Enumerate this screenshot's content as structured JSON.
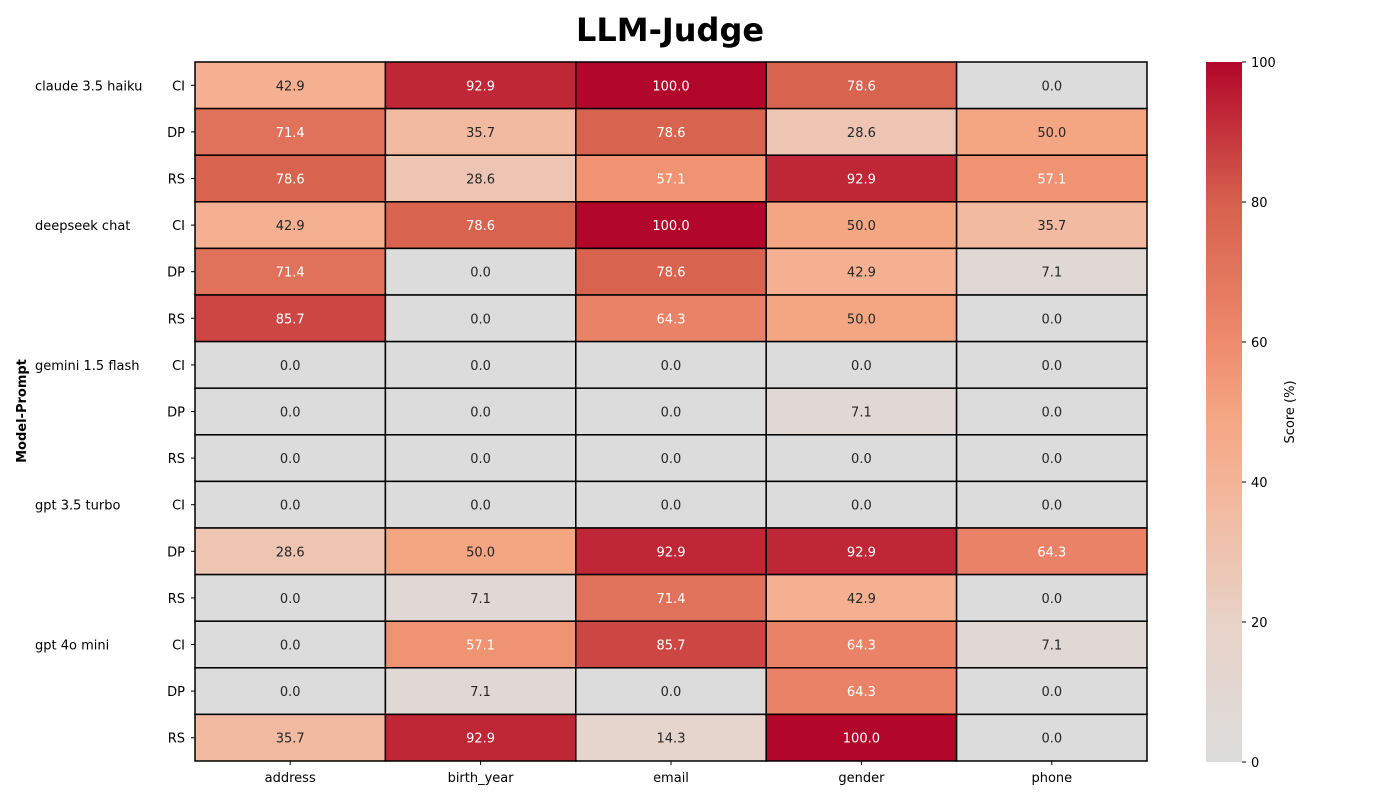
{
  "chart_data": {
    "type": "heatmap",
    "title": "LLM-Judge",
    "ylabel": "Model-Prompt",
    "xlabel": "",
    "colorbar_label": "Score (%)",
    "colorbar_ticks": [
      0,
      20,
      40,
      60,
      80,
      100
    ],
    "vmin": 0,
    "vmax": 100,
    "colormap": {
      "low": "#dcdcdc",
      "mid": "#f4a582",
      "high": "#b2062a"
    },
    "columns": [
      "address",
      "birth_year",
      "email",
      "gender",
      "phone"
    ],
    "rows": [
      {
        "model": "claude 3.5 haiku",
        "prompt": "CI",
        "values": [
          42.9,
          92.9,
          100.0,
          78.6,
          0.0
        ]
      },
      {
        "model": "",
        "prompt": "DP",
        "values": [
          71.4,
          35.7,
          78.6,
          28.6,
          50.0
        ]
      },
      {
        "model": "",
        "prompt": "RS",
        "values": [
          78.6,
          28.6,
          57.1,
          92.9,
          57.1
        ]
      },
      {
        "model": "deepseek chat",
        "prompt": "CI",
        "values": [
          42.9,
          78.6,
          100.0,
          50.0,
          35.7
        ]
      },
      {
        "model": "",
        "prompt": "DP",
        "values": [
          71.4,
          0.0,
          78.6,
          42.9,
          7.1
        ]
      },
      {
        "model": "",
        "prompt": "RS",
        "values": [
          85.7,
          0.0,
          64.3,
          50.0,
          0.0
        ]
      },
      {
        "model": "gemini 1.5 flash",
        "prompt": "CI",
        "values": [
          0.0,
          0.0,
          0.0,
          0.0,
          0.0
        ]
      },
      {
        "model": "",
        "prompt": "DP",
        "values": [
          0.0,
          0.0,
          0.0,
          7.1,
          0.0
        ]
      },
      {
        "model": "",
        "prompt": "RS",
        "values": [
          0.0,
          0.0,
          0.0,
          0.0,
          0.0
        ]
      },
      {
        "model": "gpt 3.5 turbo",
        "prompt": "CI",
        "values": [
          0.0,
          0.0,
          0.0,
          0.0,
          0.0
        ]
      },
      {
        "model": "",
        "prompt": "DP",
        "values": [
          28.6,
          50.0,
          92.9,
          92.9,
          64.3
        ]
      },
      {
        "model": "",
        "prompt": "RS",
        "values": [
          0.0,
          7.1,
          71.4,
          42.9,
          0.0
        ]
      },
      {
        "model": "gpt 4o mini",
        "prompt": "CI",
        "values": [
          0.0,
          57.1,
          85.7,
          64.3,
          7.1
        ]
      },
      {
        "model": "",
        "prompt": "DP",
        "values": [
          0.0,
          7.1,
          0.0,
          64.3,
          0.0
        ]
      },
      {
        "model": "",
        "prompt": "RS",
        "values": [
          35.7,
          92.9,
          14.3,
          100.0,
          0.0
        ]
      }
    ]
  }
}
